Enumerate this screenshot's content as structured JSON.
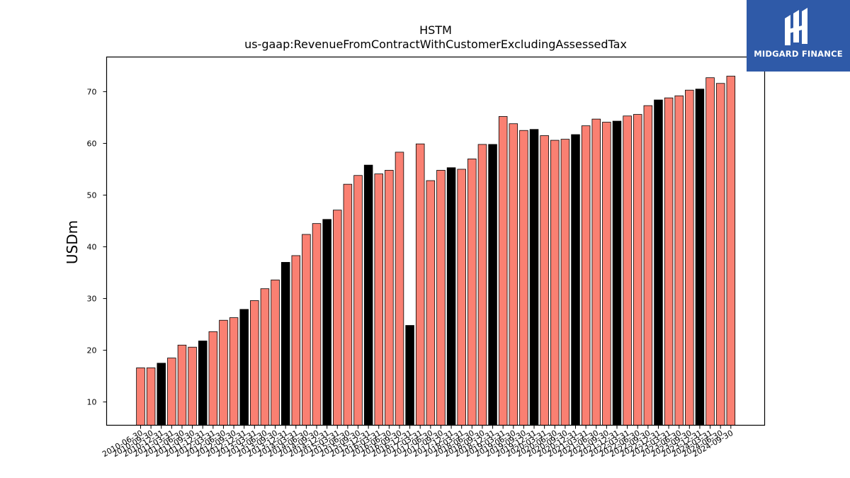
{
  "logo": {
    "text": "MIDGARD FINANCE",
    "icon": "midgard-logo-mark",
    "background": "#2f5aa8"
  },
  "chart_data": {
    "type": "bar",
    "title": "HSTM",
    "subtitle": "us-gaap:RevenueFromContractWithCustomerExcludingAssessedTax",
    "xlabel": "",
    "ylabel": "USDm",
    "ylim": [
      5.5,
      76.7
    ],
    "yticks": [
      10,
      20,
      30,
      40,
      50,
      60,
      70
    ],
    "grid": false,
    "colors": {
      "quarter": "#fa8072",
      "fiscal_year_end": "#000000",
      "edge": "#000000"
    },
    "categories": [
      "2010-06-30",
      "2010-09-30",
      "2010-12-31",
      "2011-03-31",
      "2011-06-30",
      "2011-09-30",
      "2011-12-31",
      "2012-03-31",
      "2012-06-30",
      "2012-09-30",
      "2012-12-31",
      "2013-03-31",
      "2013-06-30",
      "2013-09-30",
      "2013-12-31",
      "2014-03-31",
      "2014-06-30",
      "2014-09-30",
      "2014-12-31",
      "2015-03-31",
      "2015-06-30",
      "2015-09-30",
      "2015-12-31",
      "2016-03-31",
      "2016-06-30",
      "2016-09-30",
      "2016-12-31",
      "2017-03-31",
      "2017-06-30",
      "2017-09-30",
      "2017-12-31",
      "2018-03-31",
      "2018-06-30",
      "2018-09-30",
      "2018-12-31",
      "2019-03-31",
      "2019-06-30",
      "2019-09-30",
      "2019-12-31",
      "2020-03-31",
      "2020-06-30",
      "2020-09-30",
      "2020-12-31",
      "2021-03-31",
      "2021-06-30",
      "2021-09-30",
      "2021-12-31",
      "2022-03-31",
      "2022-06-30",
      "2022-09-30",
      "2022-12-31",
      "2023-03-31",
      "2023-06-30",
      "2023-09-30",
      "2023-12-31",
      "2024-03-31",
      "2024-06-30",
      "2024-09-30"
    ],
    "values": [
      16.6,
      16.6,
      17.5,
      18.5,
      21.0,
      20.6,
      21.8,
      23.6,
      25.8,
      26.3,
      27.9,
      29.6,
      31.9,
      33.6,
      37.0,
      38.3,
      42.4,
      44.5,
      45.3,
      47.1,
      52.1,
      53.8,
      55.8,
      54.1,
      54.8,
      58.3,
      24.8,
      59.9,
      52.8,
      54.8,
      55.3,
      55.0,
      57.0,
      59.8,
      59.8,
      65.2,
      63.8,
      62.5,
      62.7,
      61.5,
      60.6,
      60.8,
      61.7,
      63.4,
      64.7,
      64.1,
      64.3,
      65.3,
      65.6,
      67.3,
      68.4,
      68.8,
      69.2,
      70.3,
      70.5,
      72.7,
      71.6,
      73.0
    ],
    "fiscal_year_end": [
      false,
      false,
      true,
      false,
      false,
      false,
      true,
      false,
      false,
      false,
      true,
      false,
      false,
      false,
      true,
      false,
      false,
      false,
      true,
      false,
      false,
      false,
      true,
      false,
      false,
      false,
      true,
      false,
      false,
      false,
      true,
      false,
      false,
      false,
      true,
      false,
      false,
      false,
      true,
      false,
      false,
      false,
      true,
      false,
      false,
      false,
      true,
      false,
      false,
      false,
      true,
      false,
      false,
      false,
      true,
      false,
      false,
      false
    ]
  }
}
